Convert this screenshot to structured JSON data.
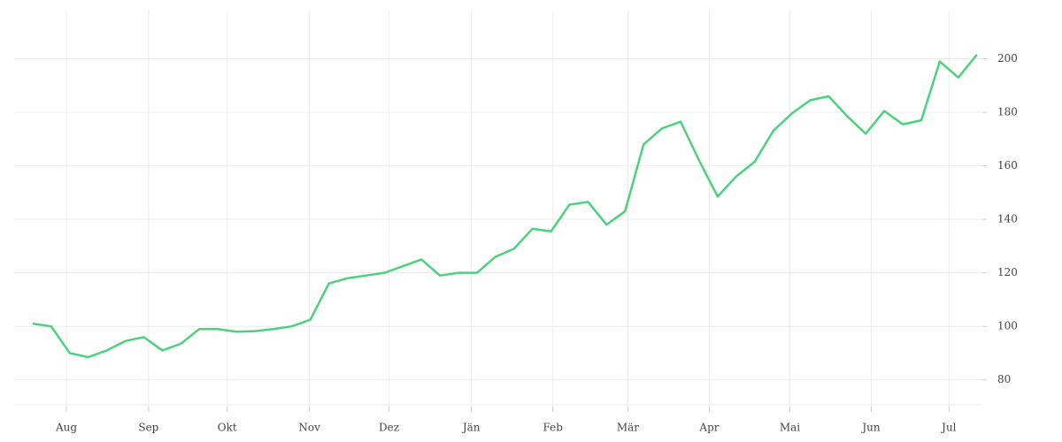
{
  "chart_data": {
    "type": "line",
    "x": [
      0,
      1,
      2,
      3,
      4,
      5,
      6,
      7,
      8,
      9,
      10,
      11,
      12,
      13,
      14,
      15,
      16,
      17,
      18,
      19,
      20,
      21,
      22,
      23,
      24,
      25,
      26,
      27,
      28,
      29,
      30,
      31,
      32,
      33,
      34,
      35,
      36,
      37,
      38,
      39,
      40,
      41,
      42,
      43,
      44,
      45,
      46,
      47,
      48,
      49,
      50,
      51
    ],
    "series": [
      {
        "color": "#4cd17d",
        "values": [
          101,
          100,
          90,
          88.5,
          91,
          94.5,
          96,
          91,
          93.5,
          99,
          99,
          98,
          98.2,
          99,
          100,
          102.5,
          116,
          118,
          119,
          120,
          122.5,
          125,
          119,
          120,
          120,
          126,
          129,
          136.5,
          135.5,
          145.5,
          146.5,
          138,
          143,
          168,
          174,
          176.5,
          162,
          148.5,
          156,
          161.5,
          173,
          179.5,
          184.5,
          186,
          178.5,
          172,
          180.5,
          175.5,
          177,
          199,
          193,
          201.5
        ]
      }
    ],
    "xlim": [
      -1,
      51.3
    ],
    "xticks": [
      {
        "value": 1.82,
        "label": "Aug"
      },
      {
        "value": 6.26,
        "label": "Sep"
      },
      {
        "value": 10.51,
        "label": "Okt"
      },
      {
        "value": 14.95,
        "label": "Nov"
      },
      {
        "value": 19.25,
        "label": "Dez"
      },
      {
        "value": 23.7,
        "label": "Jän"
      },
      {
        "value": 28.1,
        "label": "Feb"
      },
      {
        "value": 32.15,
        "label": "Mär"
      },
      {
        "value": 36.55,
        "label": "Apr"
      },
      {
        "value": 40.9,
        "label": "Mai"
      },
      {
        "value": 45.3,
        "label": "Jun"
      },
      {
        "value": 49.5,
        "label": "Jul"
      }
    ],
    "ylim": [
      70,
      218
    ],
    "yticks": [
      80,
      100,
      120,
      140,
      160,
      180,
      200
    ],
    "grid": true
  }
}
